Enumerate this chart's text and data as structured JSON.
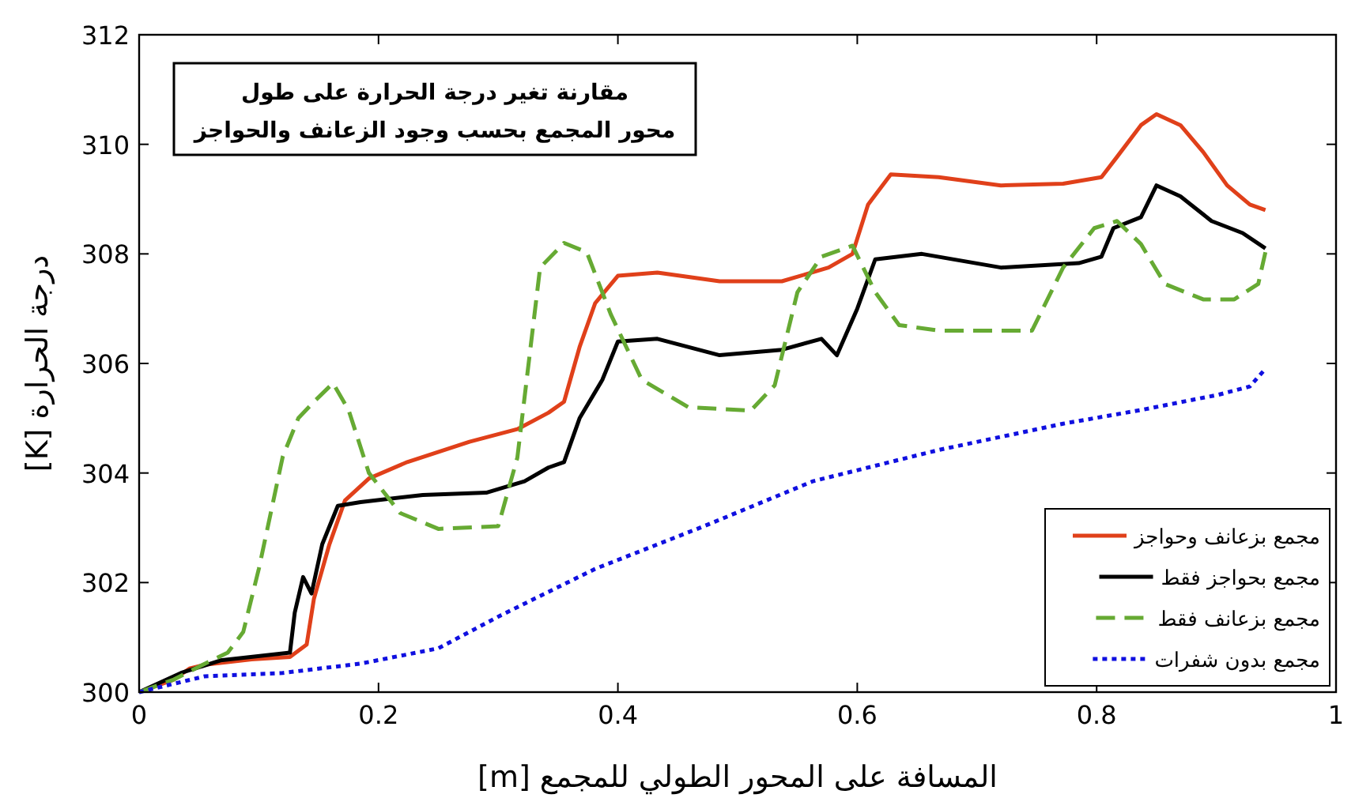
{
  "chart_data": {
    "type": "line",
    "title": "مقارنة تغير درجة الحرارة على طول\nمحور المجمع بحسب وجود الزعانف والحواجز",
    "xlabel": "المسافة على المحور الطولي للمجمع [m]",
    "ylabel": "درجة الحرارة [K]",
    "xlim": [
      0,
      1
    ],
    "xticks": [
      0,
      0.2,
      0.4,
      0.6,
      0.8,
      1
    ],
    "ylim": [
      300,
      312
    ],
    "yticks": [
      300,
      302,
      304,
      306,
      308,
      310,
      312
    ],
    "grid": false,
    "legend": "bottom right",
    "series": [
      {
        "name": "مجمع بزعانف وحواجز",
        "color": "#e0401a",
        "line_style": "solid",
        "x": [
          0,
          0.029,
          0.042,
          0.055,
          0.094,
          0.126,
          0.14,
          0.146,
          0.159,
          0.172,
          0.192,
          0.224,
          0.276,
          0.316,
          0.342,
          0.355,
          0.368,
          0.381,
          0.4,
          0.433,
          0.485,
          0.537,
          0.576,
          0.596,
          0.609,
          0.628,
          0.668,
          0.72,
          0.772,
          0.804,
          0.817,
          0.837,
          0.85,
          0.87,
          0.889,
          0.909,
          0.928,
          0.941
        ],
        "values": [
          300,
          300.23,
          300.43,
          300.5,
          300.6,
          300.64,
          300.87,
          301.7,
          302.7,
          303.5,
          303.9,
          304.2,
          304.57,
          304.8,
          305.1,
          305.3,
          306.3,
          307.1,
          307.6,
          307.66,
          307.5,
          307.5,
          307.75,
          308.0,
          308.9,
          309.45,
          309.4,
          309.25,
          309.28,
          309.4,
          309.77,
          310.35,
          310.55,
          310.35,
          309.86,
          309.25,
          308.9,
          308.8
        ]
      },
      {
        "name": "مجمع بحواجز فقط",
        "color": "#000000",
        "line_style": "solid",
        "x": [
          0,
          0.035,
          0.068,
          0.126,
          0.13,
          0.137,
          0.144,
          0.153,
          0.166,
          0.185,
          0.237,
          0.29,
          0.322,
          0.342,
          0.355,
          0.368,
          0.387,
          0.4,
          0.433,
          0.485,
          0.537,
          0.57,
          0.583,
          0.6,
          0.615,
          0.654,
          0.72,
          0.785,
          0.804,
          0.814,
          0.837,
          0.85,
          0.87,
          0.896,
          0.922,
          0.941
        ],
        "values": [
          300,
          300.35,
          300.58,
          300.72,
          301.45,
          302.1,
          301.8,
          302.7,
          303.4,
          303.47,
          303.6,
          303.64,
          303.85,
          304.1,
          304.2,
          305.0,
          305.7,
          306.4,
          306.45,
          306.15,
          306.25,
          306.45,
          306.15,
          307.0,
          307.9,
          308.0,
          307.75,
          307.83,
          307.95,
          308.47,
          308.67,
          309.25,
          309.05,
          308.6,
          308.38,
          308.1
        ]
      },
      {
        "name": "مجمع بزعانف فقط",
        "color": "#66aa33",
        "line_style": "dashed",
        "x": [
          0,
          0.029,
          0.055,
          0.074,
          0.087,
          0.1,
          0.12,
          0.133,
          0.146,
          0.162,
          0.175,
          0.192,
          0.218,
          0.25,
          0.3,
          0.316,
          0.335,
          0.355,
          0.374,
          0.394,
          0.42,
          0.459,
          0.511,
          0.531,
          0.55,
          0.57,
          0.596,
          0.615,
          0.635,
          0.668,
          0.746,
          0.772,
          0.798,
          0.817,
          0.837,
          0.857,
          0.889,
          0.915,
          0.935,
          0.941
        ],
        "values": [
          300,
          300.23,
          300.52,
          300.72,
          301.1,
          302.25,
          304.3,
          305.0,
          305.3,
          305.64,
          305.15,
          304.0,
          303.27,
          302.98,
          303.03,
          304.28,
          307.75,
          308.2,
          308.03,
          306.9,
          305.7,
          305.2,
          305.14,
          305.6,
          307.3,
          307.95,
          308.15,
          307.3,
          306.7,
          306.6,
          306.6,
          307.75,
          308.47,
          308.6,
          308.18,
          307.45,
          307.17,
          307.17,
          307.45,
          308.03
        ]
      },
      {
        "name": "مجمع بدون شفرات",
        "color": "#1010e0",
        "line_style": "dotted",
        "x": [
          0,
          0.055,
          0.12,
          0.185,
          0.25,
          0.302,
          0.381,
          0.472,
          0.563,
          0.668,
          0.772,
          0.837,
          0.902,
          0.928,
          0.941
        ],
        "values": [
          300,
          300.29,
          300.35,
          300.52,
          300.8,
          301.4,
          302.25,
          303.03,
          303.85,
          304.42,
          304.9,
          305.15,
          305.43,
          305.58,
          305.9
        ]
      }
    ]
  }
}
